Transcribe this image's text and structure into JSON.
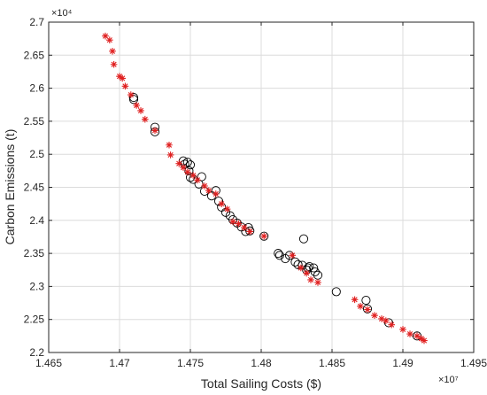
{
  "chart_data": {
    "type": "scatter",
    "title": "",
    "xlabel": "Total Sailing Costs ($)",
    "ylabel": "Carbon Emissions (t)",
    "x_exponent_label": "×10⁷",
    "y_exponent_label": "×10⁴",
    "xlim": [
      1.465,
      1.495
    ],
    "ylim": [
      2.2,
      2.7
    ],
    "x_ticks": [
      "1.465",
      "1.47",
      "1.475",
      "1.48",
      "1.485",
      "1.49",
      "1.495"
    ],
    "y_ticks": [
      "2.2",
      "2.25",
      "2.3",
      "2.35",
      "2.4",
      "2.45",
      "2.5",
      "2.55",
      "2.6",
      "2.65",
      "2.7"
    ],
    "grid": true,
    "legend": "none",
    "series": [
      {
        "marker": "circle",
        "color": "#000000",
        "x": [
          1.471,
          1.471,
          1.4725,
          1.4725,
          1.4745,
          1.4746,
          1.4748,
          1.4749,
          1.475,
          1.475,
          1.4752,
          1.4756,
          1.4758,
          1.476,
          1.4765,
          1.4768,
          1.477,
          1.4772,
          1.4775,
          1.4778,
          1.478,
          1.4783,
          1.4786,
          1.4789,
          1.4791,
          1.4792,
          1.4802,
          1.4812,
          1.4813,
          1.4817,
          1.482,
          1.4824,
          1.4826,
          1.4829,
          1.483,
          1.4832,
          1.4833,
          1.4834,
          1.4837,
          1.4838,
          1.484,
          1.4853,
          1.4874,
          1.4875,
          1.489,
          1.491
        ],
        "y": [
          2.583,
          2.586,
          2.541,
          2.534,
          2.49,
          2.485,
          2.488,
          2.475,
          2.484,
          2.465,
          2.462,
          2.455,
          2.466,
          2.444,
          2.437,
          2.445,
          2.429,
          2.42,
          2.412,
          2.407,
          2.401,
          2.396,
          2.39,
          2.383,
          2.389,
          2.384,
          2.376,
          2.35,
          2.347,
          2.342,
          2.347,
          2.337,
          2.333,
          2.332,
          2.372,
          2.325,
          2.328,
          2.33,
          2.328,
          2.322,
          2.317,
          2.292,
          2.279,
          2.266,
          2.245,
          2.225
        ]
      },
      {
        "marker": "asterisk",
        "color": "#e02020",
        "x": [
          1.469,
          1.4693,
          1.4695,
          1.4696,
          1.47,
          1.4702,
          1.4704,
          1.4708,
          1.4712,
          1.4715,
          1.4718,
          1.4725,
          1.4735,
          1.4736,
          1.4742,
          1.4745,
          1.4748,
          1.4752,
          1.4755,
          1.476,
          1.4763,
          1.4768,
          1.4772,
          1.4776,
          1.478,
          1.4784,
          1.4788,
          1.4792,
          1.4802,
          1.4822,
          1.4828,
          1.4832,
          1.4835,
          1.484,
          1.4866,
          1.487,
          1.4875,
          1.488,
          1.4885,
          1.4888,
          1.4892,
          1.49,
          1.4905,
          1.491,
          1.4913,
          1.4915
        ],
        "y": [
          2.679,
          2.673,
          2.656,
          2.636,
          2.618,
          2.615,
          2.603,
          2.59,
          2.574,
          2.566,
          2.553,
          2.536,
          2.514,
          2.499,
          2.486,
          2.48,
          2.473,
          2.468,
          2.461,
          2.452,
          2.445,
          2.44,
          2.425,
          2.417,
          2.398,
          2.395,
          2.389,
          2.383,
          2.376,
          2.347,
          2.328,
          2.32,
          2.31,
          2.306,
          2.28,
          2.27,
          2.265,
          2.256,
          2.251,
          2.248,
          2.242,
          2.235,
          2.228,
          2.225,
          2.221,
          2.218
        ]
      }
    ]
  }
}
